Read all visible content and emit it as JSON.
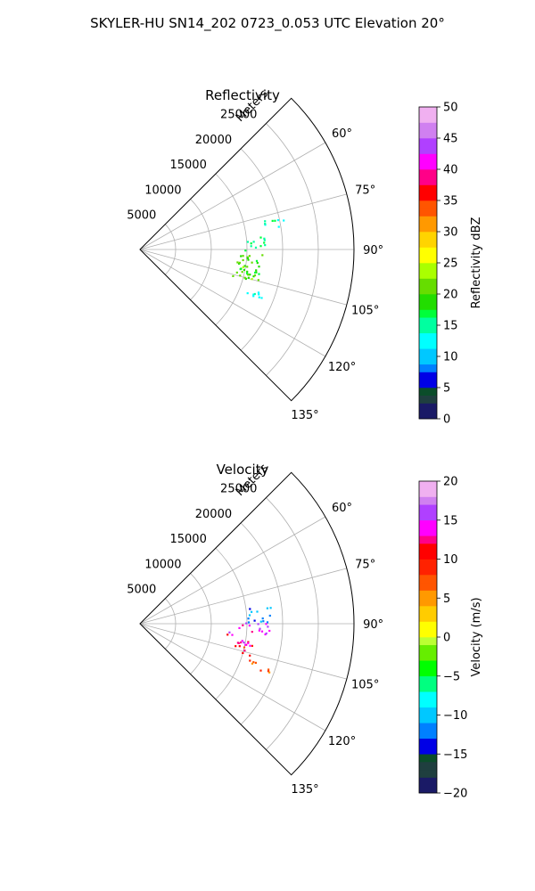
{
  "figure": {
    "suptitle": "SKYLER-HU  SN14_202  0723_0.053 UTC Elevation 20°"
  },
  "chart_data": [
    {
      "type": "heatmap",
      "subtype": "polar-sector-ppi",
      "title": "Reflectivity",
      "radial_label": "Meters",
      "r_ticks": [
        5000,
        10000,
        15000,
        20000,
        25000
      ],
      "r_tick_labels": [
        "5000",
        "10000",
        "15000",
        "20000",
        "25000"
      ],
      "rlim": [
        0,
        30000
      ],
      "theta_ticks": [
        60,
        75,
        90,
        105,
        120,
        135
      ],
      "theta_tick_labels": [
        "60°",
        "75°",
        "90°",
        "105°",
        "120°",
        "135°"
      ],
      "theta_range_deg": [
        45,
        135
      ],
      "grid": true,
      "colorbar": {
        "label": "Reflectivity dBZ",
        "range": [
          0,
          50
        ],
        "ticks": [
          0,
          5,
          10,
          15,
          20,
          25,
          30,
          35,
          40,
          45,
          50
        ],
        "tick_labels": [
          "0",
          "5",
          "10",
          "15",
          "20",
          "25",
          "30",
          "35",
          "40",
          "45",
          "50"
        ],
        "colormap": "pyart-NWSRef-like"
      },
      "echo_regions": [
        {
          "az": [
            90,
            103
          ],
          "r": [
            13500,
            17500
          ],
          "value": 19
        },
        {
          "az": [
            97,
            106
          ],
          "r": [
            12500,
            17000
          ],
          "value": 21
        },
        {
          "az": [
            83,
            90
          ],
          "r": [
            15000,
            18500
          ],
          "value": 15
        },
        {
          "az": [
            76,
            82
          ],
          "r": [
            17500,
            20500
          ],
          "value": 14
        },
        {
          "az": [
            108,
            113
          ],
          "r": [
            16000,
            19500
          ],
          "value": 13
        }
      ]
    },
    {
      "type": "heatmap",
      "subtype": "polar-sector-ppi",
      "title": "Velocity",
      "radial_label": "Meters",
      "r_ticks": [
        5000,
        10000,
        15000,
        20000,
        25000
      ],
      "r_tick_labels": [
        "5000",
        "10000",
        "15000",
        "20000",
        "25000"
      ],
      "rlim": [
        0,
        30000
      ],
      "theta_ticks": [
        60,
        75,
        90,
        105,
        120,
        135
      ],
      "theta_tick_labels": [
        "60°",
        "75°",
        "90°",
        "105°",
        "120°",
        "135°"
      ],
      "theta_range_deg": [
        45,
        135
      ],
      "grid": true,
      "colorbar": {
        "label": "Velocity (m/s)",
        "range": [
          -20,
          20
        ],
        "ticks": [
          -20,
          -15,
          -10,
          -5,
          0,
          5,
          10,
          15,
          20
        ],
        "tick_labels": [
          "−20",
          "−15",
          "−10",
          "−5",
          "0",
          "5",
          "10",
          "15",
          "20"
        ],
        "colormap": "pyart-NWSVel-like"
      },
      "echo_regions": [
        {
          "az": [
            80,
            89
          ],
          "r": [
            15000,
            18500
          ],
          "value": -12
        },
        {
          "az": [
            89,
            95
          ],
          "r": [
            13500,
            18500
          ],
          "value": 15
        },
        {
          "az": [
            95,
            101
          ],
          "r": [
            12000,
            16500
          ],
          "value": 13
        },
        {
          "az": [
            100,
            106
          ],
          "r": [
            13500,
            16500
          ],
          "value": 10
        },
        {
          "az": [
            108,
            113
          ],
          "r": [
            16000,
            19500
          ],
          "value": 8
        }
      ]
    }
  ]
}
